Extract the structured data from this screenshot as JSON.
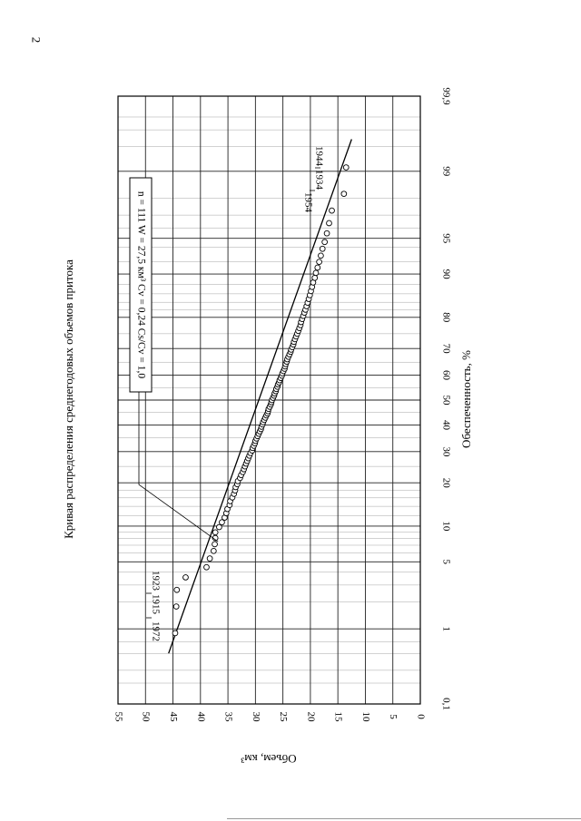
{
  "page": {
    "number": "2"
  },
  "chart_data": {
    "type": "scatter",
    "title": "Кривая распределения среднегодовых объемов притока",
    "xlabel": "Обеспеченность, %",
    "ylabel": "Объем, км³",
    "x_scale": "normal-probability",
    "xlim": [
      0.1,
      99.9
    ],
    "ylim": [
      0,
      55
    ],
    "grid": true,
    "x_ticks": [
      "0,1",
      "1",
      "5",
      "10",
      "20",
      "30",
      "40",
      "50",
      "60",
      "70",
      "80",
      "90",
      "95",
      "99",
      "99,9"
    ],
    "x_tick_values": [
      0.1,
      1,
      5,
      10,
      20,
      30,
      40,
      50,
      60,
      70,
      80,
      90,
      95,
      99,
      99.9
    ],
    "y_ticks": [
      "0",
      "5",
      "10",
      "15",
      "20",
      "25",
      "30",
      "35",
      "40",
      "45",
      "50",
      "55"
    ],
    "y_tick_values": [
      0,
      5,
      10,
      15,
      20,
      25,
      30,
      35,
      40,
      45,
      50,
      55
    ],
    "parameters_label": "n = 111   W = 27,5 км³   Cv = 0,24   Cs/Cv = 1,0",
    "annotations": [
      {
        "text": "1972",
        "x": 1.0,
        "y": 44.6
      },
      {
        "text": "1915",
        "x": 1.9,
        "y": 44.6
      },
      {
        "text": "1923",
        "x": 2.9,
        "y": 44.6
      },
      {
        "text": "1954",
        "x": 98.6,
        "y": 13.5
      },
      {
        "text": "1934",
        "x": 99.1,
        "y": 13.5
      },
      {
        "text": "1944",
        "x": 99.4,
        "y": 13.5
      }
    ],
    "series": [
      {
        "kind": "points",
        "x": [
          0.89,
          1.79,
          2.68,
          3.57,
          4.46,
          5.36,
          6.25,
          7.14,
          8.04,
          8.93,
          9.82,
          10.7,
          11.6,
          12.5,
          13.4,
          14.3,
          15.2,
          16.1,
          17,
          17.9,
          18.8,
          19.6,
          20.5,
          21.4,
          22.3,
          23.2,
          24.1,
          25,
          25.9,
          26.8,
          27.7,
          28.6,
          29.5,
          30.4,
          31.3,
          32.1,
          33,
          33.9,
          34.8,
          35.7,
          36.6,
          37.5,
          38.4,
          39.3,
          40.2,
          41.1,
          42,
          42.9,
          43.8,
          44.6,
          45.5,
          46.4,
          47.3,
          48.2,
          49.1,
          50,
          50.9,
          51.8,
          52.7,
          53.6,
          54.5,
          55.4,
          56.3,
          57.1,
          58,
          58.9,
          59.8,
          60.7,
          61.6,
          62.5,
          63.4,
          64.3,
          65.2,
          66.1,
          67,
          67.9,
          68.8,
          69.6,
          70.5,
          71.4,
          72.3,
          73.2,
          74.1,
          75,
          75.9,
          76.8,
          77.7,
          78.6,
          79.5,
          80.4,
          81.3,
          82.1,
          83,
          83.9,
          84.8,
          85.7,
          86.6,
          87.5,
          88.4,
          89.3,
          90.2,
          91.1,
          92,
          92.9,
          93.8,
          94.6,
          95.5,
          96.4,
          97.3,
          98.2,
          99.1
        ],
        "y": [
          44.6,
          44.4,
          44.3,
          42.7,
          38.9,
          38.3,
          37.6,
          37.4,
          37.3,
          37.3,
          36.6,
          36.1,
          35.6,
          35.3,
          35.1,
          34.7,
          34.6,
          34.2,
          33.9,
          33.7,
          33.6,
          33.3,
          33.2,
          32.8,
          32.6,
          32.3,
          32.1,
          31.9,
          31.7,
          31.5,
          31.3,
          31.1,
          30.9,
          30.6,
          30.5,
          30.3,
          30.1,
          30,
          29.8,
          29.6,
          29.4,
          29.2,
          29,
          28.9,
          28.7,
          28.6,
          28.4,
          28.2,
          28,
          27.8,
          27.7,
          27.6,
          27.4,
          27.2,
          27.1,
          27,
          26.8,
          26.6,
          26.5,
          26.3,
          26.2,
          26,
          25.9,
          25.7,
          25.6,
          25.4,
          25.2,
          25.1,
          24.9,
          24.7,
          24.6,
          24.5,
          24.3,
          24.2,
          24,
          23.8,
          23.6,
          23.5,
          23.3,
          23.1,
          23,
          22.8,
          22.6,
          22.4,
          22.2,
          22,
          21.8,
          21.7,
          21.5,
          21.3,
          21.1,
          20.9,
          20.7,
          20.5,
          20.3,
          20.1,
          19.9,
          19.7,
          19.5,
          19.2,
          19,
          18.7,
          18.4,
          18.1,
          17.8,
          17.4,
          17,
          16.6,
          16.1,
          13.9,
          13.5
        ]
      },
      {
        "kind": "fitted-line",
        "x": [
          0.5,
          99.6
        ],
        "y": [
          45.8,
          12.5
        ]
      }
    ]
  }
}
